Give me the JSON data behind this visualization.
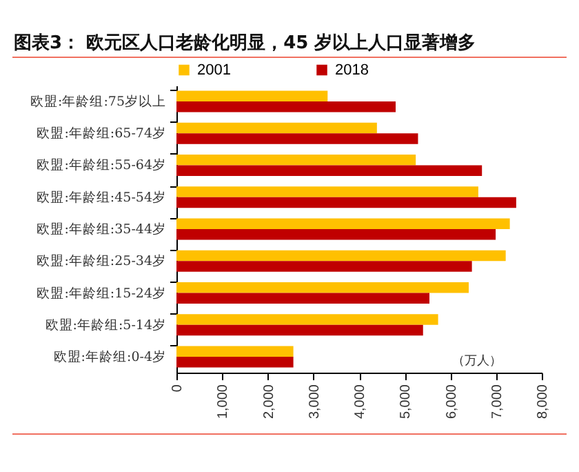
{
  "chart_data": {
    "type": "bar",
    "orientation": "horizontal",
    "title": "图表3： 欧元区人口老龄化明显，45 岁以上人口显著增多",
    "categories": [
      "欧盟:年龄组:75岁以上",
      "欧盟:年龄组:65-74岁",
      "欧盟:年龄组:55-64岁",
      "欧盟:年龄组:45-54岁",
      "欧盟:年龄组:35-44岁",
      "欧盟:年龄组:25-34岁",
      "欧盟:年龄组:15-24岁",
      "欧盟:年龄组:5-14岁",
      "欧盟:年龄组:0-4岁"
    ],
    "series": [
      {
        "name": "2001",
        "color": "#ffc000",
        "values": [
          3310,
          4390,
          5240,
          6610,
          7300,
          7210,
          6400,
          5730,
          2560
        ]
      },
      {
        "name": "2018",
        "color": "#c00000",
        "values": [
          4800,
          5290,
          6690,
          7440,
          6990,
          6470,
          5540,
          5400,
          2560
        ]
      }
    ],
    "xlim": [
      0,
      8000
    ],
    "xticks": [
      {
        "value": 0,
        "label": "0"
      },
      {
        "value": 1000,
        "label": "1,000"
      },
      {
        "value": 2000,
        "label": "2,000"
      },
      {
        "value": 3000,
        "label": "3,000"
      },
      {
        "value": 4000,
        "label": "4,000"
      },
      {
        "value": 5000,
        "label": "5,000"
      },
      {
        "value": 6000,
        "label": "6,000"
      },
      {
        "value": 7000,
        "label": "7,000"
      },
      {
        "value": 8000,
        "label": "8,000"
      }
    ],
    "annotations": [
      "（万人）"
    ],
    "legend": "top",
    "grid": false
  }
}
